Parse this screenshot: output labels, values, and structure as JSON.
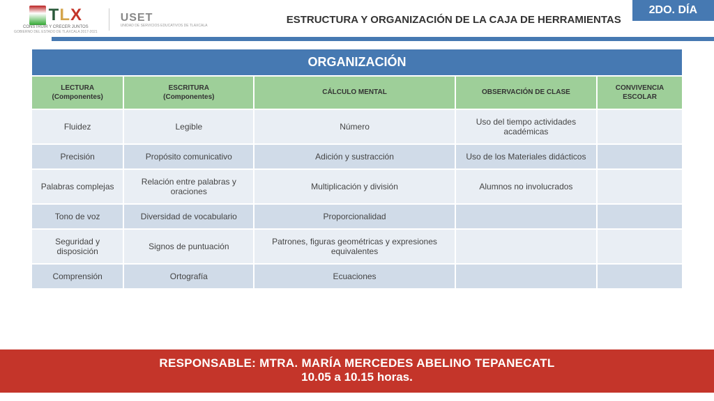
{
  "header": {
    "logo_tlx": "TLX",
    "logo_tlx_sub1": "CONSTRUIR Y CRECER JUNTOS",
    "logo_tlx_sub2": "GOBIERNO DEL ESTADO DE TLAXCALA 2017-2021",
    "logo_uset": "USET",
    "logo_uset_sub": "UNIDAD DE SERVICIOS EDUCATIVOS DE TLAXCALA",
    "title": "ESTRUCTURA Y ORGANIZACIÓN DE LA CAJA DE HERRAMIENTAS",
    "day_badge": "2DO. DÍA"
  },
  "table": {
    "title": "ORGANIZACIÓN",
    "columns": [
      {
        "main": "LECTURA",
        "sub": "(Componentes)"
      },
      {
        "main": "ESCRITURA",
        "sub": "(Componentes)"
      },
      {
        "main": "CÁLCULO MENTAL",
        "sub": ""
      },
      {
        "main": "OBSERVACIÓN DE CLASE",
        "sub": ""
      },
      {
        "main": "CONVIVENCIA ESCOLAR",
        "sub": ""
      }
    ],
    "rows": [
      [
        "Fluidez",
        "Legible",
        "Número",
        "Uso del tiempo actividades académicas",
        ""
      ],
      [
        "Precisión",
        "Propósito comunicativo",
        "Adición y sustracción",
        "Uso de los Materiales didácticos",
        ""
      ],
      [
        "Palabras complejas",
        "Relación entre palabras y oraciones",
        "Multiplicación y división",
        "Alumnos no involucrados",
        ""
      ],
      [
        "Tono de voz",
        "Diversidad de vocabulario",
        "Proporcionalidad",
        "",
        ""
      ],
      [
        "Seguridad y disposición",
        "Signos de puntuación",
        "Patrones, figuras geométricas y expresiones equivalentes",
        "",
        ""
      ],
      [
        "Comprensión",
        "Ortografía",
        "Ecuaciones",
        "",
        ""
      ]
    ]
  },
  "footer": {
    "line1": "RESPONSABLE: MTRA. MARÍA MERCEDES ABELINO TEPANECATL",
    "line2": "10.05 a 10.15 horas."
  },
  "colors": {
    "header_blue": "#4679b2",
    "header_green": "#9ecf99",
    "row_light": "#e9eef4",
    "row_dark": "#d0dbe8",
    "footer_red": "#c4352a"
  }
}
